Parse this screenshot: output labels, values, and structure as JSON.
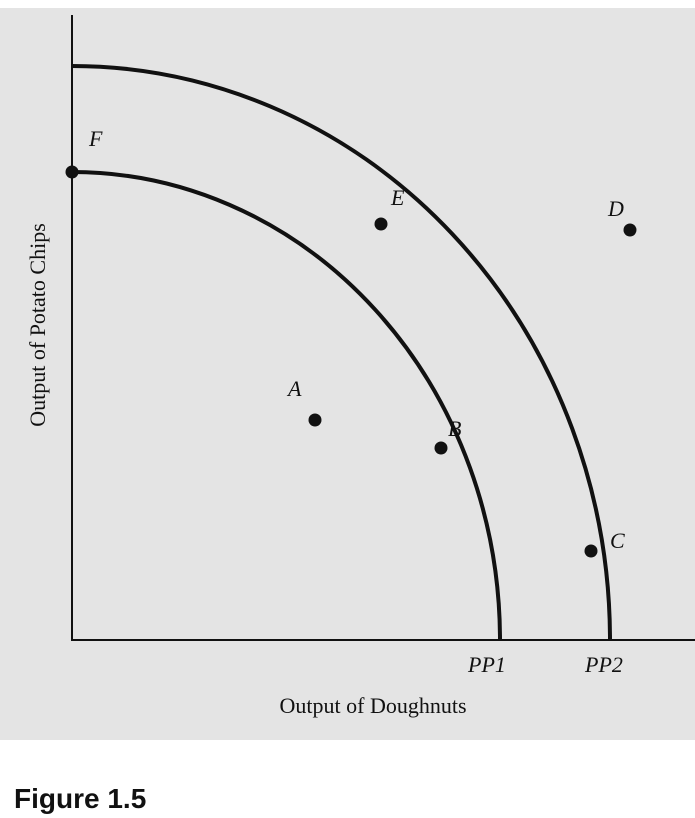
{
  "figure": {
    "caption": "Figure 1.5",
    "x_axis_label": "Output of Doughnuts",
    "y_axis_label": "Output of Potato Chips",
    "curves": [
      {
        "label": "PP1"
      },
      {
        "label": "PP2"
      }
    ],
    "points": [
      {
        "label": "A"
      },
      {
        "label": "B"
      },
      {
        "label": "C"
      },
      {
        "label": "D"
      },
      {
        "label": "E"
      },
      {
        "label": "F"
      }
    ]
  }
}
